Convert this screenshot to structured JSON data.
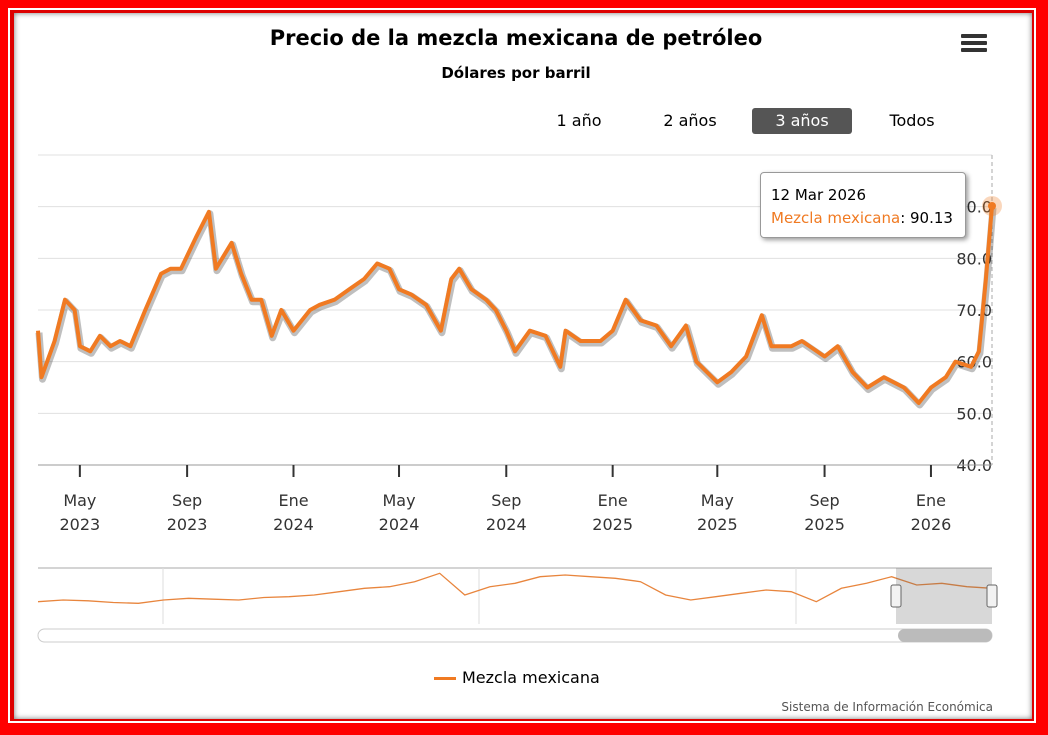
{
  "chart_data": {
    "type": "line",
    "title": "Precio de la mezcla mexicana de petróleo",
    "subtitle": "Dólares por barril",
    "ylim": [
      40,
      100
    ],
    "y_ticks": [
      "40.0",
      "50.0",
      "60.0",
      "70.0",
      "80.0",
      "90.0"
    ],
    "x_ticks": [
      {
        "date": "2023-05-01",
        "m": "May",
        "y": "2023"
      },
      {
        "date": "2023-09-01",
        "m": "Sep",
        "y": "2023"
      },
      {
        "date": "2024-01-01",
        "m": "Ene",
        "y": "2024"
      },
      {
        "date": "2024-05-01",
        "m": "May",
        "y": "2024"
      },
      {
        "date": "2024-09-01",
        "m": "Sep",
        "y": "2024"
      },
      {
        "date": "2025-01-01",
        "m": "Ene",
        "y": "2025"
      },
      {
        "date": "2025-05-01",
        "m": "May",
        "y": "2025"
      },
      {
        "date": "2025-09-01",
        "m": "Sep",
        "y": "2025"
      },
      {
        "date": "2026-01-01",
        "m": "Ene",
        "y": "2026"
      }
    ],
    "xlim": [
      "2023-03-14",
      "2026-03-12"
    ],
    "grid": true,
    "legend_placement": "bottom",
    "series": [
      {
        "name": "Mezcla mexicana",
        "color": "#f07a22",
        "points": [
          [
            "2023-03-14",
            66
          ],
          [
            "2023-03-18",
            57
          ],
          [
            "2023-04-02",
            64
          ],
          [
            "2023-04-14",
            72
          ],
          [
            "2023-04-25",
            70
          ],
          [
            "2023-05-01",
            63
          ],
          [
            "2023-05-13",
            62
          ],
          [
            "2023-05-24",
            65
          ],
          [
            "2023-06-05",
            63
          ],
          [
            "2023-06-16",
            64
          ],
          [
            "2023-06-28",
            63
          ],
          [
            "2023-07-15",
            70
          ],
          [
            "2023-08-02",
            77
          ],
          [
            "2023-08-13",
            78
          ],
          [
            "2023-08-25",
            78
          ],
          [
            "2023-09-11",
            84
          ],
          [
            "2023-09-26",
            89
          ],
          [
            "2023-10-04",
            78
          ],
          [
            "2023-10-22",
            83
          ],
          [
            "2023-11-02",
            77
          ],
          [
            "2023-11-14",
            72
          ],
          [
            "2023-11-25",
            72
          ],
          [
            "2023-12-07",
            65
          ],
          [
            "2023-12-18",
            70
          ],
          [
            "2024-01-01",
            66
          ],
          [
            "2024-01-20",
            70
          ],
          [
            "2024-01-31",
            71
          ],
          [
            "2024-02-17",
            72
          ],
          [
            "2024-03-05",
            74
          ],
          [
            "2024-03-22",
            76
          ],
          [
            "2024-04-06",
            79
          ],
          [
            "2024-04-20",
            78
          ],
          [
            "2024-05-01",
            74
          ],
          [
            "2024-05-15",
            73
          ],
          [
            "2024-06-01",
            71
          ],
          [
            "2024-06-18",
            66
          ],
          [
            "2024-06-30",
            76
          ],
          [
            "2024-07-09",
            78
          ],
          [
            "2024-07-23",
            74
          ],
          [
            "2024-08-09",
            72
          ],
          [
            "2024-08-20",
            70
          ],
          [
            "2024-09-01",
            66
          ],
          [
            "2024-09-11",
            62
          ],
          [
            "2024-09-28",
            66
          ],
          [
            "2024-10-16",
            65
          ],
          [
            "2024-11-02",
            59
          ],
          [
            "2024-11-08",
            66
          ],
          [
            "2024-11-25",
            64
          ],
          [
            "2024-12-18",
            64
          ],
          [
            "2025-01-01",
            66
          ],
          [
            "2025-01-16",
            72
          ],
          [
            "2025-02-02",
            68
          ],
          [
            "2025-02-20",
            67
          ],
          [
            "2025-03-09",
            63
          ],
          [
            "2025-03-26",
            67
          ],
          [
            "2025-04-07",
            60
          ],
          [
            "2025-04-19",
            58
          ],
          [
            "2025-05-01",
            56
          ],
          [
            "2025-05-17",
            58
          ],
          [
            "2025-06-03",
            61
          ],
          [
            "2025-06-21",
            69
          ],
          [
            "2025-07-02",
            63
          ],
          [
            "2025-07-25",
            63
          ],
          [
            "2025-08-06",
            64
          ],
          [
            "2025-09-01",
            61
          ],
          [
            "2025-09-16",
            63
          ],
          [
            "2025-10-03",
            58
          ],
          [
            "2025-10-20",
            55
          ],
          [
            "2025-11-08",
            57
          ],
          [
            "2025-12-01",
            55
          ],
          [
            "2025-12-18",
            52
          ],
          [
            "2026-01-01",
            55
          ],
          [
            "2026-01-18",
            57
          ],
          [
            "2026-01-29",
            60
          ],
          [
            "2026-02-16",
            59
          ],
          [
            "2026-02-25",
            62
          ],
          [
            "2026-03-05",
            76
          ],
          [
            "2026-03-12",
            90.13
          ]
        ]
      }
    ],
    "tooltip": {
      "date": "12 Mar 2026",
      "series": "Mezcla mexicana",
      "value": "90.13"
    },
    "navigator_values": [
      22,
      24,
      23,
      21,
      20,
      24,
      26,
      25,
      24,
      27,
      28,
      30,
      34,
      38,
      40,
      46,
      56,
      30,
      40,
      44,
      52,
      54,
      52,
      50,
      46,
      30,
      24,
      28,
      32,
      36,
      34,
      22,
      38,
      44,
      52,
      42,
      44,
      40,
      38
    ]
  },
  "range_selector": {
    "buttons": [
      {
        "label": "1 año"
      },
      {
        "label": "2 años"
      },
      {
        "label": "3 años"
      },
      {
        "label": "Todos"
      }
    ],
    "selected": "3 años"
  },
  "menu_icon": "hamburger-menu-icon",
  "credits": "Sistema de Información Económica"
}
